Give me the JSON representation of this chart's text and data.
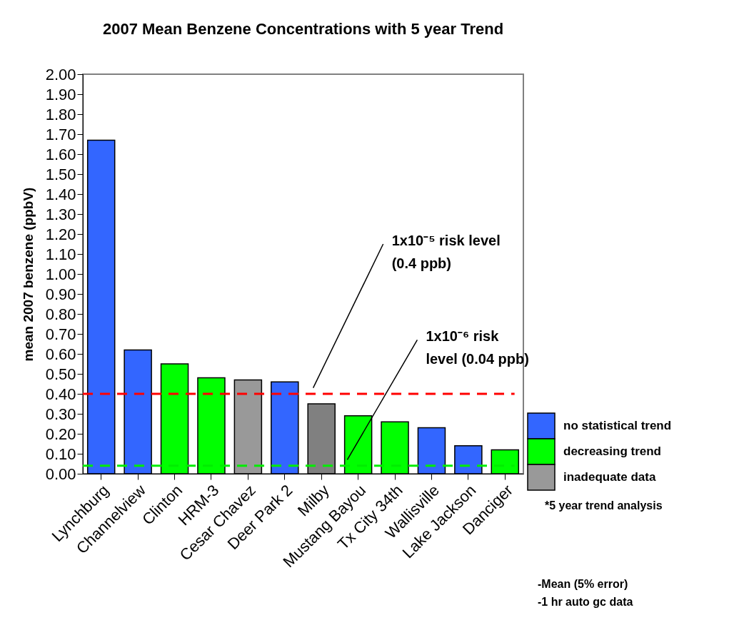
{
  "chart_data": {
    "type": "bar",
    "title": "2007 Mean Benzene Concentrations with 5 year Trend",
    "ylabel": "mean 2007 benzene (ppbV)",
    "categories": [
      "Lynchburg",
      "Channelview",
      "Clinton",
      "HRM-3",
      "Cesar Chavez",
      "Deer Park 2",
      "Milby",
      "Mustang Bayou",
      "Tx City 34th",
      "Wallisville",
      "Lake Jackson",
      "Danciger"
    ],
    "series": [
      {
        "name": "no statistical trend",
        "color": "#3366ff",
        "values": [
          1.67,
          0.62,
          null,
          null,
          null,
          0.46,
          null,
          null,
          null,
          0.23,
          0.14,
          null
        ]
      },
      {
        "name": "decreasing trend",
        "color": "#00ff00",
        "values": [
          null,
          null,
          0.55,
          0.48,
          null,
          null,
          null,
          0.29,
          0.26,
          null,
          null,
          0.12
        ]
      },
      {
        "name": "inadequate data",
        "color": "#999999",
        "colors": [
          null,
          null,
          null,
          null,
          "#999999",
          null,
          "#808080",
          null,
          null,
          null,
          null,
          null
        ],
        "values": [
          null,
          null,
          null,
          null,
          0.47,
          null,
          0.35,
          null,
          null,
          null,
          null,
          null
        ]
      }
    ],
    "ylim": [
      0,
      2
    ],
    "yticks": [
      {
        "value": 0,
        "label": "0.00"
      },
      {
        "value": 0.1,
        "label": "0.10"
      },
      {
        "value": 0.2,
        "label": "0.20"
      },
      {
        "value": 0.3,
        "label": "0.30"
      },
      {
        "value": 0.4,
        "label": "0.40"
      },
      {
        "value": 0.5,
        "label": "0.50"
      },
      {
        "value": 0.6,
        "label": "0.60"
      },
      {
        "value": 0.7,
        "label": "0.70"
      },
      {
        "value": 0.8,
        "label": "0.80"
      },
      {
        "value": 0.9,
        "label": "0.90"
      },
      {
        "value": 1,
        "label": "1.00"
      },
      {
        "value": 1.1,
        "label": "1.10"
      },
      {
        "value": 1.2,
        "label": "1.20"
      },
      {
        "value": 1.3,
        "label": "1.30"
      },
      {
        "value": 1.4,
        "label": "1.40"
      },
      {
        "value": 1.5,
        "label": "1.50"
      },
      {
        "value": 1.6,
        "label": "1.60"
      },
      {
        "value": 1.7,
        "label": "1.70"
      },
      {
        "value": 1.8,
        "label": "1.80"
      },
      {
        "value": 1.9,
        "label": "1.90"
      },
      {
        "value": 2,
        "label": "2.00"
      }
    ],
    "ref_lines": [
      {
        "axis": "y",
        "value": 0.4,
        "label": "1x10⁻⁵ risk level (0.4 ppb)",
        "color": "#ff0000",
        "line_style": "dashed"
      },
      {
        "axis": "y",
        "value": 0.04,
        "label": "1x10⁻⁶ risk level (0.04 ppb)",
        "color": "#00ee00",
        "line_style": "dashed"
      }
    ],
    "annotations": [
      "*5 year trend analysis",
      "-Mean (5% error)",
      "-1 hr auto gc data"
    ],
    "legend": "right",
    "grid": false
  }
}
